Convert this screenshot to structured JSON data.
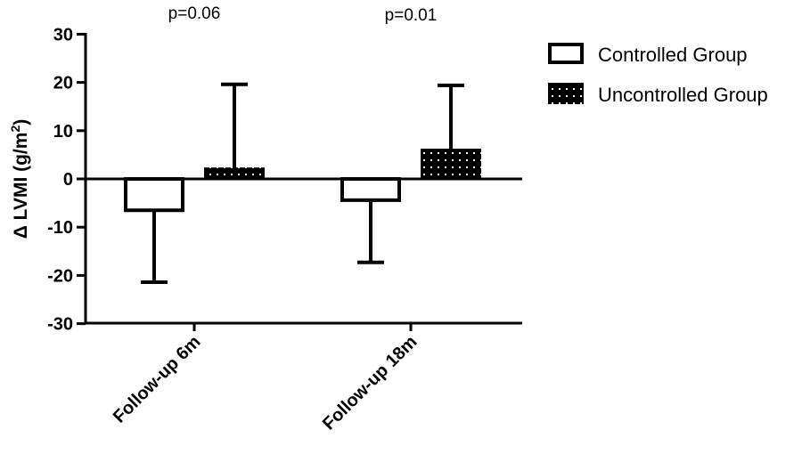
{
  "chart_data": {
    "type": "bar",
    "title": "",
    "xlabel": "",
    "ylabel": "Δ LVMI (g/m²)",
    "ylabel_parts": {
      "main": "Δ LVMI (g/m",
      "sup": "2",
      "end": ")"
    },
    "ylim": [
      -30,
      30
    ],
    "yticks": [
      30,
      20,
      10,
      0,
      -10,
      -20,
      -30
    ],
    "categories": [
      "Follow-up 6m",
      "Follow-up 18m"
    ],
    "series": [
      {
        "name": "Controlled Group",
        "fill": "white",
        "values": [
          -6.5,
          -4.4
        ],
        "error_end": [
          -21.4,
          -17.3
        ]
      },
      {
        "name": "Uncontrolled Group",
        "fill": "black-dotted",
        "values": [
          2.0,
          5.9
        ],
        "error_end": [
          19.6,
          19.4
        ]
      }
    ],
    "annotations": [
      "p=0.06",
      "p=0.01"
    ],
    "grid": false,
    "legend_position": "right"
  },
  "colors": {
    "ink": "#000000",
    "background": "#ffffff"
  }
}
